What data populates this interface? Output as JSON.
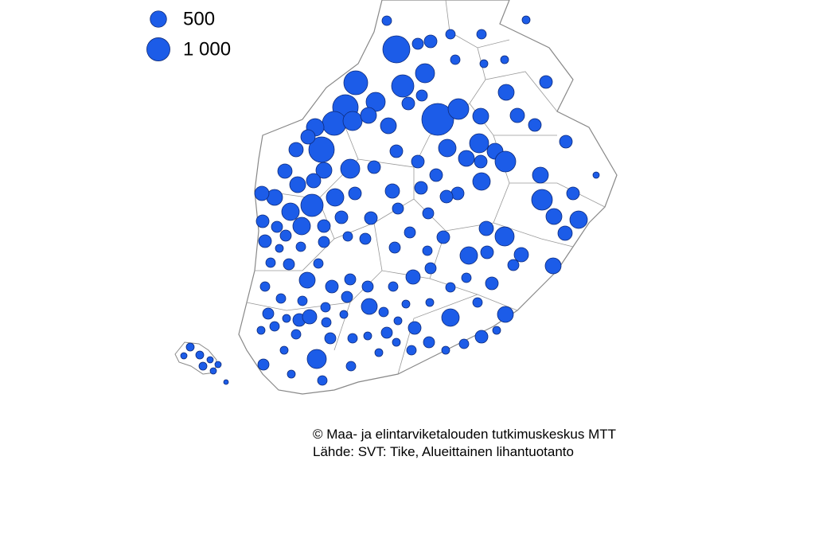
{
  "legend": {
    "items": [
      {
        "value": 500,
        "label": "500"
      },
      {
        "value": 1000,
        "label": "1 000"
      }
    ]
  },
  "credits": {
    "copyright": "© Maa- ja elintarviketalouden tutkimuskeskus MTT",
    "source": "Lähde: SVT: Tike, Alueittainen lihantuotanto"
  }
}
